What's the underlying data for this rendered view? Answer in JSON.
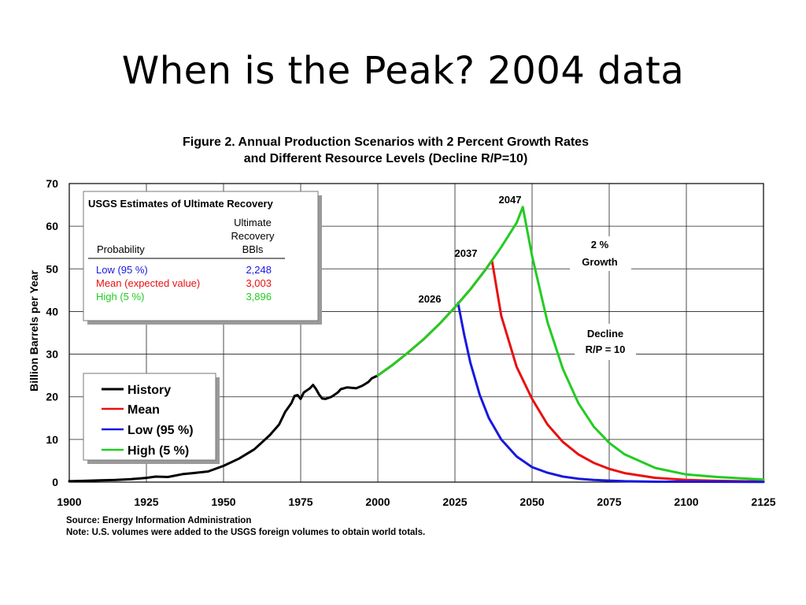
{
  "slide": {
    "title": "When is the Peak? 2004 data"
  },
  "chart_data": {
    "type": "line",
    "title": "Figure 2.  Annual Production Scenarios with 2 Percent Growth Rates",
    "subtitle": "and Different Resource Levels (Decline R/P=10)",
    "xlabel": "",
    "ylabel": "Billion Barrels per Year",
    "xlim": [
      1900,
      2125
    ],
    "ylim": [
      0,
      70
    ],
    "xticks": [
      1900,
      1925,
      1950,
      1975,
      2000,
      2025,
      2050,
      2075,
      2100,
      2125
    ],
    "yticks": [
      0,
      10,
      20,
      30,
      40,
      50,
      60,
      70
    ],
    "grid": true,
    "legend_position": "bottom-left",
    "series": [
      {
        "name": "History",
        "color": "#000000",
        "x": [
          1900,
          1905,
          1910,
          1915,
          1920,
          1925,
          1928,
          1932,
          1937,
          1940,
          1945,
          1950,
          1955,
          1960,
          1965,
          1968,
          1970,
          1972,
          1973,
          1974,
          1975,
          1976,
          1978,
          1979,
          1980,
          1981,
          1982,
          1983,
          1985,
          1987,
          1988,
          1990,
          1993,
          1995,
          1997,
          1998,
          2000
        ],
        "y": [
          0.2,
          0.3,
          0.4,
          0.5,
          0.7,
          1.0,
          1.3,
          1.2,
          1.9,
          2.1,
          2.5,
          3.8,
          5.5,
          7.7,
          11.0,
          13.5,
          16.5,
          18.5,
          20.2,
          20.4,
          19.5,
          21.0,
          22.0,
          22.8,
          21.8,
          20.5,
          19.6,
          19.5,
          20.0,
          21.0,
          21.8,
          22.2,
          22.0,
          22.6,
          23.5,
          24.3,
          25.0
        ]
      },
      {
        "name": "Mean",
        "color": "#e81010",
        "x": [
          2000,
          2005,
          2010,
          2015,
          2020,
          2025,
          2030,
          2035,
          2037,
          2040,
          2045,
          2050,
          2055,
          2060,
          2065,
          2070,
          2075,
          2080,
          2090,
          2100,
          2110,
          2125
        ],
        "y": [
          25.0,
          27.6,
          30.5,
          33.6,
          37.1,
          41.0,
          45.2,
          49.9,
          52.0,
          39.0,
          27.0,
          19.5,
          13.5,
          9.4,
          6.5,
          4.5,
          3.1,
          2.1,
          1.0,
          0.5,
          0.3,
          0.15
        ]
      },
      {
        "name": "Low (95 %)",
        "color": "#1818e0",
        "x": [
          2026,
          2028,
          2030,
          2033,
          2036,
          2040,
          2045,
          2050,
          2055,
          2060,
          2065,
          2070,
          2080,
          2090,
          2100,
          2125
        ],
        "y": [
          42.0,
          34.5,
          28.0,
          20.5,
          15.0,
          10.0,
          6.0,
          3.5,
          2.2,
          1.3,
          0.8,
          0.5,
          0.2,
          0.1,
          0.1,
          0.05
        ]
      },
      {
        "name": "High (5 %)",
        "color": "#22cc22",
        "x": [
          2000,
          2005,
          2010,
          2015,
          2020,
          2025,
          2030,
          2035,
          2040,
          2045,
          2047,
          2050,
          2055,
          2060,
          2065,
          2070,
          2075,
          2080,
          2090,
          2100,
          2110,
          2125
        ],
        "y": [
          25.0,
          27.6,
          30.5,
          33.6,
          37.1,
          41.0,
          45.2,
          49.9,
          55.1,
          60.8,
          64.5,
          53.0,
          37.5,
          26.5,
          18.5,
          13.0,
          9.2,
          6.5,
          3.3,
          1.8,
          1.2,
          0.6
        ]
      }
    ],
    "legend": [
      "History",
      "Mean",
      "Low (95 %)",
      "High (5 %)"
    ],
    "annotations": {
      "peak_2026": "2026",
      "peak_2037": "2037",
      "peak_2047": "2047",
      "growth_line1": "2 %",
      "growth_line2": "Growth",
      "decline_line1": "Decline",
      "decline_line2": "R/P = 10"
    },
    "usgs_table": {
      "title": "USGS Estimates of Ultimate Recovery",
      "col_header_1": "Probability",
      "col_header_2_line1": "Ultimate",
      "col_header_2_line2": "Recovery",
      "col_header_2_line3": "BBls",
      "rows": [
        {
          "label": "Low (95 %)",
          "value": "2,248",
          "color": "#1818e0"
        },
        {
          "label": "Mean (expected value)",
          "value": "3,003",
          "color": "#e81010"
        },
        {
          "label": "High (5 %)",
          "value": "3,896",
          "color": "#22cc22"
        }
      ]
    },
    "source": "Source:  Energy Information Administration",
    "note": "Note:  U.S. volumes were added to the USGS foreign volumes to obtain world totals."
  }
}
